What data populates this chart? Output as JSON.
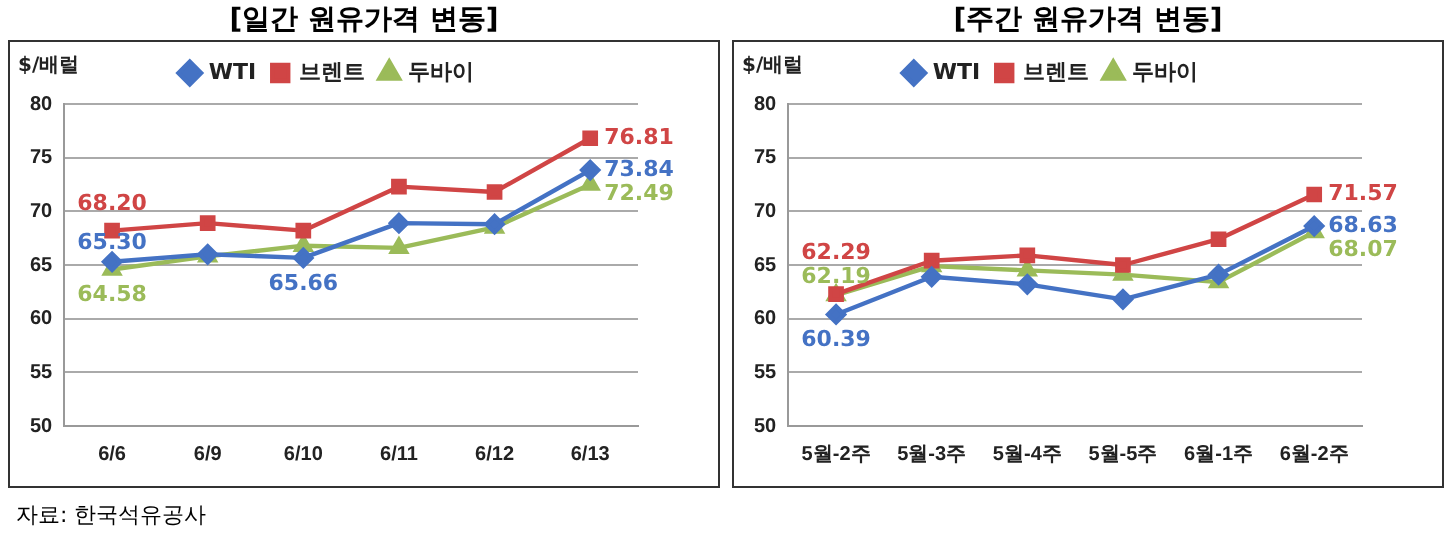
{
  "chart_data": [
    {
      "type": "line",
      "title": "[일간 원유가격 변동]",
      "ylabel": "$/배럴",
      "categories": [
        "6/6",
        "6/9",
        "6/10",
        "6/11",
        "6/12",
        "6/13"
      ],
      "series": [
        {
          "name": "WTI",
          "color": "#4472c4",
          "marker": "diamond",
          "values": [
            65.3,
            66.0,
            65.66,
            68.9,
            68.8,
            73.84
          ],
          "value_labels": [
            "65.30",
            null,
            "65.66",
            null,
            null,
            "73.84"
          ]
        },
        {
          "name": "브렌트",
          "color": "#d04545",
          "marker": "square",
          "values": [
            68.2,
            68.9,
            68.2,
            72.3,
            71.8,
            76.81
          ],
          "value_labels": [
            "68.20",
            null,
            null,
            null,
            null,
            "76.81"
          ]
        },
        {
          "name": "두바이",
          "color": "#9bbb59",
          "marker": "triangle",
          "values": [
            64.58,
            65.8,
            66.8,
            66.6,
            68.5,
            72.49
          ],
          "value_labels": [
            "64.58",
            null,
            null,
            null,
            null,
            "72.49"
          ]
        }
      ],
      "ylim": [
        50,
        80
      ],
      "yticks": [
        50,
        55,
        60,
        65,
        70,
        75,
        80
      ],
      "grid": "y",
      "legend": "top",
      "line_style": "solid"
    },
    {
      "type": "line",
      "title": "[주간 원유가격 변동]",
      "ylabel": "$/배럴",
      "categories": [
        "5월-2주",
        "5월-3주",
        "5월-4주",
        "5월-5주",
        "6월-1주",
        "6월-2주"
      ],
      "series": [
        {
          "name": "WTI",
          "color": "#4472c4",
          "marker": "diamond",
          "values": [
            60.39,
            63.9,
            63.2,
            61.8,
            64.1,
            68.63
          ],
          "value_labels": [
            "60.39",
            null,
            null,
            null,
            null,
            "68.63"
          ]
        },
        {
          "name": "브렌트",
          "color": "#d04545",
          "marker": "square",
          "values": [
            62.29,
            65.4,
            65.9,
            65.0,
            67.4,
            71.57
          ],
          "value_labels": [
            "62.29",
            null,
            null,
            null,
            null,
            "71.57"
          ]
        },
        {
          "name": "두바이",
          "color": "#9bbb59",
          "marker": "triangle",
          "values": [
            62.19,
            64.9,
            64.5,
            64.1,
            63.4,
            68.07
          ],
          "value_labels": [
            "62.19",
            null,
            null,
            null,
            null,
            "68.07"
          ]
        }
      ],
      "ylim": [
        50,
        80
      ],
      "yticks": [
        50,
        55,
        60,
        65,
        70,
        75,
        80
      ],
      "grid": "y",
      "legend": "top",
      "line_style": "solid",
      "annotations": [
        "자료: 한국석유공사"
      ]
    }
  ]
}
